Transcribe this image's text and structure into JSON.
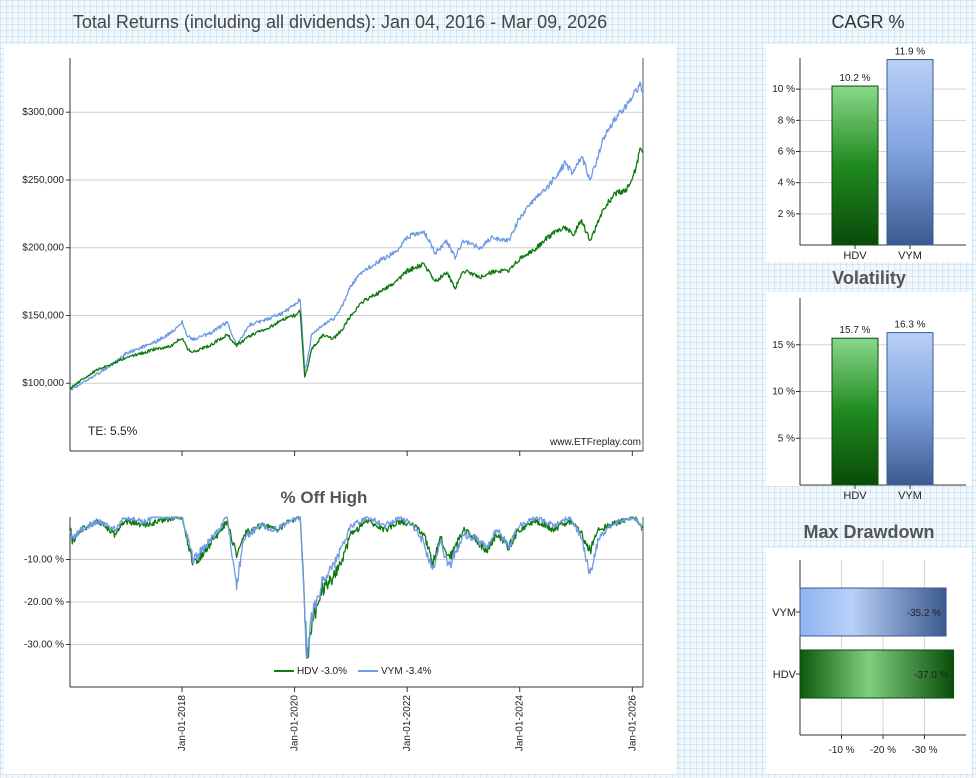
{
  "titles": {
    "main": "Total Returns (including all dividends): Jan 04, 2016 - Mar 09, 2026",
    "cagr": "CAGR %",
    "volatility": "Volatility",
    "max_drawdown": "Max Drawdown",
    "off_high": "% Off High"
  },
  "annotations": {
    "te": "TE:  5.5%",
    "watermark": "www.ETFreplay.com"
  },
  "colors": {
    "HDV": "#0f7a0f",
    "VYM": "#6f9ae6"
  },
  "chart_data": [
    {
      "id": "total-returns",
      "type": "line",
      "title": "Total Returns (including all dividends): Jan 04, 2016 - Mar 09, 2026",
      "y_ticks": [
        "$100,000",
        "$150,000",
        "$200,000",
        "$250,000",
        "$300,000"
      ],
      "y_tick_values": [
        100000,
        150000,
        200000,
        250000,
        300000
      ],
      "ylim": [
        50000,
        340000
      ],
      "x_range": [
        2016.01,
        2026.19
      ],
      "x_ticks": [
        "Jan-01-2018",
        "Jan-01-2020",
        "Jan-01-2022",
        "Jan-01-2024",
        "Jan-01-2026"
      ],
      "x_tick_values": [
        2018,
        2020,
        2022,
        2024,
        2026
      ],
      "grid": "horizontal",
      "annotations": [
        "TE:  5.5%",
        "www.ETFreplay.com"
      ],
      "series": [
        {
          "name": "HDV",
          "x": [
            2016.01,
            2016.1,
            2016.3,
            2016.5,
            2016.7,
            2016.9,
            2017.0,
            2017.2,
            2017.5,
            2017.8,
            2018.0,
            2018.1,
            2018.2,
            2018.5,
            2018.8,
            2018.97,
            2019.2,
            2019.5,
            2019.8,
            2020.0,
            2020.1,
            2020.18,
            2020.22,
            2020.3,
            2020.5,
            2020.7,
            2020.85,
            2021.0,
            2021.2,
            2021.5,
            2021.8,
            2022.0,
            2022.3,
            2022.5,
            2022.7,
            2022.85,
            2023.0,
            2023.3,
            2023.5,
            2023.8,
            2024.0,
            2024.3,
            2024.5,
            2024.8,
            2024.95,
            2025.1,
            2025.25,
            2025.35,
            2025.5,
            2025.7,
            2025.9,
            2026.0,
            2026.1,
            2026.15,
            2026.19
          ],
          "y": [
            96000,
            99000,
            105000,
            110000,
            113000,
            117000,
            119000,
            121000,
            125000,
            127000,
            134000,
            125000,
            123000,
            128000,
            136000,
            128000,
            135000,
            140000,
            147000,
            150000,
            153000,
            105000,
            110000,
            125000,
            135000,
            133000,
            140000,
            150000,
            160000,
            167000,
            175000,
            183000,
            188000,
            175000,
            182000,
            170000,
            183000,
            178000,
            182000,
            183000,
            192000,
            200000,
            208000,
            215000,
            210000,
            220000,
            205000,
            215000,
            230000,
            240000,
            243000,
            250000,
            265000,
            275000,
            270000
          ]
        },
        {
          "name": "VYM",
          "x": [
            2016.01,
            2016.1,
            2016.3,
            2016.5,
            2016.7,
            2016.9,
            2017.0,
            2017.2,
            2017.5,
            2017.8,
            2018.0,
            2018.1,
            2018.2,
            2018.5,
            2018.8,
            2018.97,
            2019.2,
            2019.5,
            2019.8,
            2020.0,
            2020.1,
            2020.18,
            2020.22,
            2020.3,
            2020.5,
            2020.7,
            2020.85,
            2021.0,
            2021.2,
            2021.5,
            2021.8,
            2022.0,
            2022.3,
            2022.5,
            2022.7,
            2022.85,
            2023.0,
            2023.3,
            2023.5,
            2023.8,
            2024.0,
            2024.3,
            2024.5,
            2024.8,
            2024.95,
            2025.1,
            2025.25,
            2025.35,
            2025.5,
            2025.7,
            2025.9,
            2026.0,
            2026.1,
            2026.15,
            2026.19
          ],
          "y": [
            95000,
            97000,
            102000,
            107000,
            112000,
            118000,
            122000,
            125000,
            130000,
            137000,
            145000,
            135000,
            132000,
            137000,
            145000,
            128000,
            143000,
            147000,
            152000,
            158000,
            162000,
            110000,
            115000,
            135000,
            143000,
            148000,
            157000,
            172000,
            182000,
            190000,
            197000,
            208000,
            212000,
            196000,
            205000,
            193000,
            205000,
            200000,
            208000,
            205000,
            222000,
            238000,
            245000,
            262000,
            255000,
            268000,
            250000,
            262000,
            282000,
            295000,
            305000,
            312000,
            318000,
            322000,
            312000
          ]
        }
      ]
    },
    {
      "id": "off-high",
      "type": "line",
      "title": "% Off High",
      "y_ticks": [
        "-10.00 %",
        "-20.00 %",
        "-30.00 %"
      ],
      "y_tick_values": [
        -10,
        -20,
        -30
      ],
      "ylim": [
        -40,
        0
      ],
      "x_range": [
        2016.01,
        2026.19
      ],
      "x_ticks": [
        "Jan-01-2018",
        "Jan-01-2020",
        "Jan-01-2022",
        "Jan-01-2024",
        "Jan-01-2026"
      ],
      "x_tick_values": [
        2018,
        2020,
        2022,
        2024,
        2026
      ],
      "legend": [
        "HDV -3.0%",
        "VYM -3.4%"
      ],
      "legend_position": "bottom-center",
      "series": [
        {
          "name": "HDV -3.0%",
          "x": [
            2016.01,
            2016.05,
            2016.2,
            2016.5,
            2016.8,
            2017.0,
            2017.3,
            2017.6,
            2017.9,
            2018.0,
            2018.1,
            2018.2,
            2018.4,
            2018.7,
            2018.8,
            2018.97,
            2019.1,
            2019.4,
            2019.7,
            2019.9,
            2020.1,
            2020.15,
            2020.22,
            2020.3,
            2020.5,
            2020.7,
            2020.85,
            2021.0,
            2021.3,
            2021.6,
            2021.9,
            2022.1,
            2022.3,
            2022.45,
            2022.6,
            2022.75,
            2023.0,
            2023.2,
            2023.4,
            2023.6,
            2023.8,
            2024.0,
            2024.3,
            2024.6,
            2024.9,
            2025.1,
            2025.25,
            2025.4,
            2025.6,
            2025.8,
            2026.0,
            2026.1,
            2026.19
          ],
          "y": [
            -2,
            -6,
            -3,
            -1,
            -4,
            -1,
            -2,
            -1,
            0,
            0,
            -6,
            -11,
            -8,
            -3,
            -1,
            -9,
            -4,
            -2,
            -3,
            -1,
            0,
            -12,
            -34,
            -25,
            -17,
            -14,
            -10,
            -4,
            -1,
            -3,
            -1,
            -2,
            -4,
            -11,
            -5,
            -10,
            -3,
            -5,
            -8,
            -4,
            -7,
            -3,
            -1,
            -3,
            -1,
            -4,
            -8,
            -3,
            -2,
            -1,
            0,
            -1,
            -3
          ]
        },
        {
          "name": "VYM -3.4%",
          "x": [
            2016.01,
            2016.05,
            2016.2,
            2016.5,
            2016.8,
            2017.0,
            2017.3,
            2017.6,
            2017.9,
            2018.0,
            2018.1,
            2018.2,
            2018.4,
            2018.7,
            2018.8,
            2018.97,
            2019.1,
            2019.4,
            2019.7,
            2019.9,
            2020.1,
            2020.15,
            2020.22,
            2020.3,
            2020.5,
            2020.7,
            2020.85,
            2021.0,
            2021.3,
            2021.6,
            2021.9,
            2022.1,
            2022.3,
            2022.45,
            2022.6,
            2022.75,
            2023.0,
            2023.2,
            2023.4,
            2023.6,
            2023.8,
            2024.0,
            2024.3,
            2024.6,
            2024.9,
            2025.1,
            2025.25,
            2025.4,
            2025.6,
            2025.8,
            2026.0,
            2026.1,
            2026.19
          ],
          "y": [
            -3,
            -5,
            -3,
            -1,
            -3,
            0,
            -1,
            0,
            0,
            0,
            -5,
            -10,
            -7,
            -2,
            0,
            -16,
            -5,
            -2,
            -3,
            -1,
            0,
            -13,
            -34,
            -24,
            -15,
            -11,
            -7,
            -2,
            0,
            -2,
            0,
            -2,
            -6,
            -13,
            -6,
            -12,
            -4,
            -5,
            -7,
            -3,
            -7,
            -2,
            0,
            -2,
            0,
            -5,
            -14,
            -5,
            -2,
            -1,
            0,
            -1,
            -3
          ]
        }
      ]
    },
    {
      "id": "cagr",
      "type": "bar",
      "title": "CAGR %",
      "categories": [
        "HDV",
        "VYM"
      ],
      "values": [
        10.2,
        11.9
      ],
      "data_labels": [
        "10.2 %",
        "11.9 %"
      ],
      "y_ticks": [
        "2 %",
        "4 %",
        "6 %",
        "8 %",
        "10 %"
      ],
      "y_tick_values": [
        2,
        4,
        6,
        8,
        10
      ],
      "ylim": [
        0,
        12
      ]
    },
    {
      "id": "volatility",
      "type": "bar",
      "title": "Volatility",
      "categories": [
        "HDV",
        "VYM"
      ],
      "values": [
        15.7,
        16.3
      ],
      "data_labels": [
        "15.7 %",
        "16.3 %"
      ],
      "y_ticks": [
        "5 %",
        "10 %",
        "15 %"
      ],
      "y_tick_values": [
        5,
        10,
        15
      ],
      "ylim": [
        0,
        20
      ]
    },
    {
      "id": "max-drawdown",
      "type": "bar",
      "orientation": "horizontal",
      "title": "Max Drawdown",
      "categories": [
        "VYM",
        "HDV"
      ],
      "values": [
        -35.2,
        -37.0
      ],
      "data_labels": [
        "-35.2 %",
        "-37.0 %"
      ],
      "x_ticks": [
        "-10 %",
        "-20 %",
        "-30 %"
      ],
      "x_tick_values": [
        -10,
        -20,
        -30
      ],
      "xlim": [
        0,
        -40
      ]
    }
  ]
}
